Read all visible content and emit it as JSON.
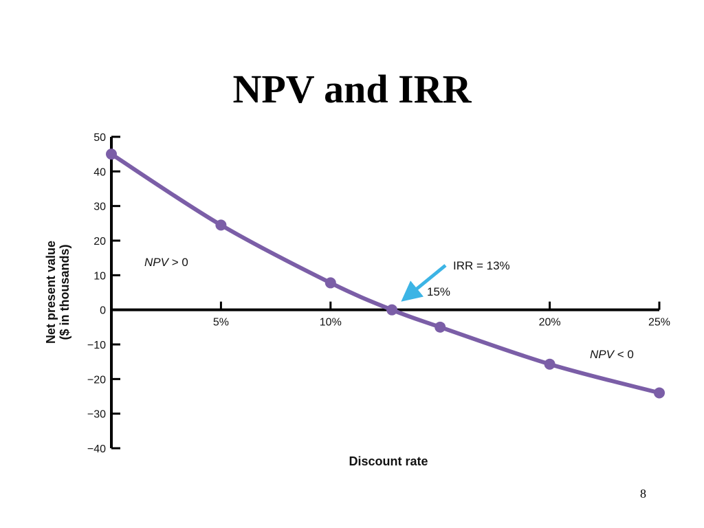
{
  "slide": {
    "title": "NPV and IRR",
    "page_number": "8"
  },
  "chart_data": {
    "type": "line",
    "title": "",
    "xlabel": "Discount rate",
    "ylabel_line1": "Net present value",
    "ylabel_line2": "($ in thousands)",
    "xlim": [
      0,
      25
    ],
    "ylim": [
      -40,
      50
    ],
    "x_ticks": [
      5,
      10,
      20,
      25
    ],
    "x_tick_labels": [
      "5%",
      "10%",
      "20%",
      "25%"
    ],
    "y_ticks": [
      50,
      40,
      30,
      20,
      10,
      0,
      -10,
      -20,
      -30,
      -40
    ],
    "y_tick_labels": [
      "50",
      "40",
      "30",
      "20",
      "10",
      "0",
      "−10",
      "−20",
      "−30",
      "−40"
    ],
    "grid": false,
    "series": [
      {
        "x": [
          0,
          5,
          10,
          12.8,
          15,
          20,
          25
        ],
        "y": [
          45,
          24.5,
          7.8,
          0,
          -5,
          -15.7,
          -24
        ]
      }
    ],
    "annotations": {
      "npv_positive": {
        "prefix": "NPV",
        "suffix": " > 0"
      },
      "npv_negative": {
        "prefix": "NPV",
        "suffix": " < 0"
      },
      "irr_label": "IRR = 13%",
      "irr_sub_label": "15%"
    },
    "colors": {
      "line": "#7b5ea7",
      "point": "#7b5ea7",
      "arrow": "#3cb4e5",
      "axis": "#000000"
    }
  }
}
